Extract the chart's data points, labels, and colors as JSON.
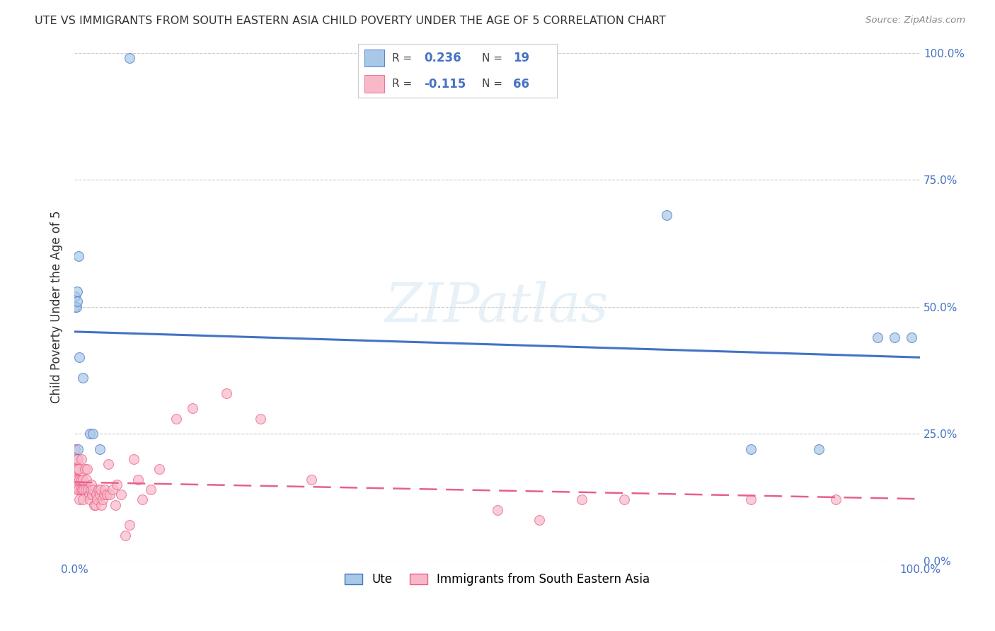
{
  "title": "UTE VS IMMIGRANTS FROM SOUTH EASTERN ASIA CHILD POVERTY UNDER THE AGE OF 5 CORRELATION CHART",
  "source": "Source: ZipAtlas.com",
  "ylabel": "Child Poverty Under the Age of 5",
  "watermark": "ZIPatlas",
  "legend_label1": "Ute",
  "legend_label2": "Immigrants from South Eastern Asia",
  "r1": 0.236,
  "n1": 19,
  "r2": -0.115,
  "n2": 66,
  "color_blue": "#a8c8e8",
  "color_pink": "#f9b8c8",
  "color_blue_line": "#4472c4",
  "color_pink_line": "#e8608a",
  "ute_x": [
    0.001,
    0.001,
    0.002,
    0.003,
    0.003,
    0.004,
    0.005,
    0.006,
    0.01,
    0.018,
    0.022,
    0.03,
    0.065,
    0.7,
    0.8,
    0.88,
    0.95,
    0.97,
    0.99
  ],
  "ute_y": [
    0.5,
    0.52,
    0.5,
    0.53,
    0.51,
    0.22,
    0.6,
    0.4,
    0.36,
    0.25,
    0.25,
    0.22,
    0.99,
    0.68,
    0.22,
    0.22,
    0.44,
    0.44,
    0.44
  ],
  "imm_x": [
    0.001,
    0.001,
    0.002,
    0.002,
    0.003,
    0.003,
    0.004,
    0.004,
    0.005,
    0.005,
    0.006,
    0.006,
    0.007,
    0.008,
    0.008,
    0.009,
    0.01,
    0.01,
    0.011,
    0.012,
    0.013,
    0.014,
    0.015,
    0.016,
    0.017,
    0.018,
    0.019,
    0.02,
    0.021,
    0.022,
    0.023,
    0.025,
    0.026,
    0.027,
    0.028,
    0.03,
    0.031,
    0.032,
    0.033,
    0.035,
    0.036,
    0.038,
    0.04,
    0.042,
    0.045,
    0.048,
    0.05,
    0.055,
    0.06,
    0.065,
    0.07,
    0.075,
    0.08,
    0.09,
    0.1,
    0.12,
    0.14,
    0.18,
    0.22,
    0.28,
    0.5,
    0.55,
    0.6,
    0.65,
    0.8,
    0.9
  ],
  "imm_y": [
    0.18,
    0.22,
    0.16,
    0.2,
    0.14,
    0.18,
    0.16,
    0.2,
    0.14,
    0.18,
    0.16,
    0.12,
    0.14,
    0.16,
    0.2,
    0.14,
    0.16,
    0.12,
    0.14,
    0.18,
    0.14,
    0.16,
    0.18,
    0.14,
    0.13,
    0.12,
    0.14,
    0.15,
    0.13,
    0.14,
    0.11,
    0.11,
    0.13,
    0.12,
    0.14,
    0.13,
    0.14,
    0.11,
    0.12,
    0.13,
    0.14,
    0.13,
    0.19,
    0.13,
    0.14,
    0.11,
    0.15,
    0.13,
    0.05,
    0.07,
    0.2,
    0.16,
    0.12,
    0.14,
    0.18,
    0.28,
    0.3,
    0.33,
    0.28,
    0.16,
    0.1,
    0.08,
    0.12,
    0.12,
    0.12,
    0.12
  ],
  "xlim": [
    0.0,
    1.0
  ],
  "ylim": [
    0.0,
    1.0
  ],
  "xticks": [
    0.0,
    1.0
  ],
  "xtick_labels": [
    "0.0%",
    "100.0%"
  ],
  "ytick_labels_right": [
    "0.0%",
    "25.0%",
    "50.0%",
    "75.0%",
    "100.0%"
  ],
  "yticks": [
    0.0,
    0.25,
    0.5,
    0.75,
    1.0
  ],
  "grid_color": "#cccccc",
  "bg_color": "#ffffff",
  "title_color": "#333333",
  "axis_color": "#4472c4",
  "title_fontsize": 11.5,
  "marker_size": 10
}
